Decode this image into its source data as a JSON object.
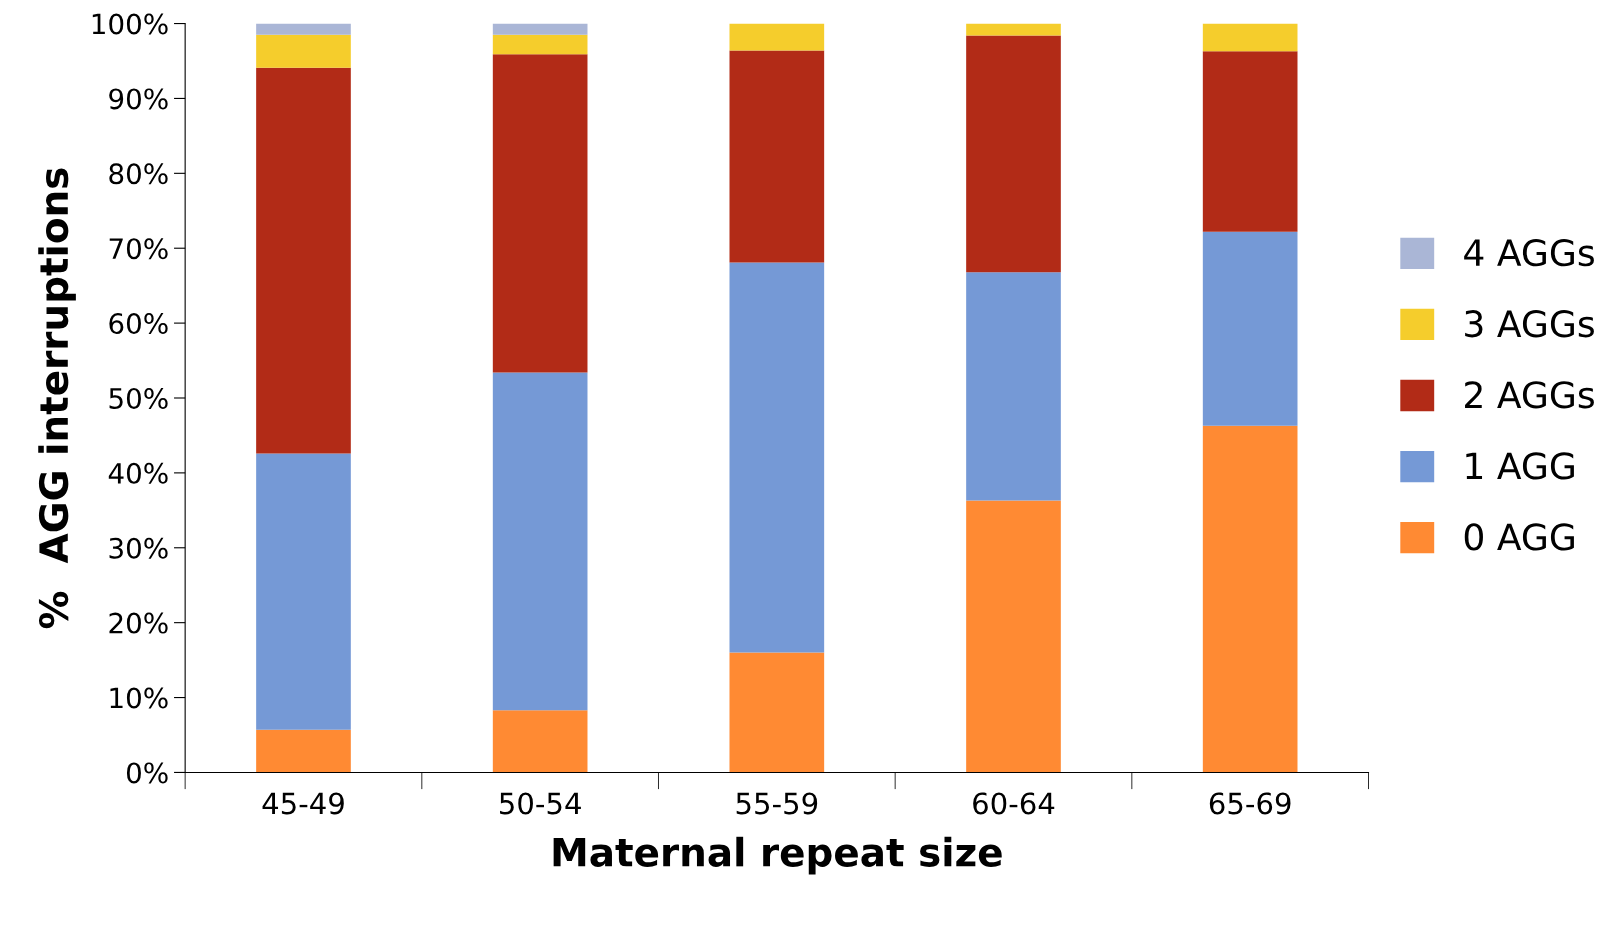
{
  "chart_data": {
    "type": "bar",
    "stacked": true,
    "xlabel": "Maternal repeat size",
    "ylabel": "%  AGG interruptions",
    "categories": [
      "45-49",
      "50-54",
      "55-59",
      "60-64",
      "65-69"
    ],
    "series": [
      {
        "name": "0 AGG",
        "color": "#ff8a33",
        "values": [
          5.7,
          8.3,
          16.0,
          36.3,
          46.3
        ]
      },
      {
        "name": "1 AGG",
        "color": "#7599d6",
        "values": [
          36.9,
          45.1,
          52.1,
          30.5,
          25.9
        ]
      },
      {
        "name": "2 AGGs",
        "color": "#b22b17",
        "values": [
          51.5,
          42.5,
          28.3,
          31.6,
          24.1
        ]
      },
      {
        "name": "3 AGGs",
        "color": "#f5cd2c",
        "values": [
          4.4,
          2.6,
          3.6,
          1.6,
          3.7
        ]
      },
      {
        "name": "4 AGGs",
        "color": "#aab6d6",
        "values": [
          1.5,
          1.5,
          0,
          0,
          0
        ]
      }
    ],
    "ylim": [
      0,
      100
    ],
    "yticks": [
      {
        "value": 0,
        "label": "0%"
      },
      {
        "value": 10,
        "label": "10%"
      },
      {
        "value": 20,
        "label": "20%"
      },
      {
        "value": 30,
        "label": "30%"
      },
      {
        "value": 40,
        "label": "40%"
      },
      {
        "value": 50,
        "label": "50%"
      },
      {
        "value": 60,
        "label": "60%"
      },
      {
        "value": 70,
        "label": "70%"
      },
      {
        "value": 80,
        "label": "80%"
      },
      {
        "value": 90,
        "label": "90%"
      },
      {
        "value": 100,
        "label": "100%"
      }
    ],
    "legend": "right",
    "grid": false
  }
}
